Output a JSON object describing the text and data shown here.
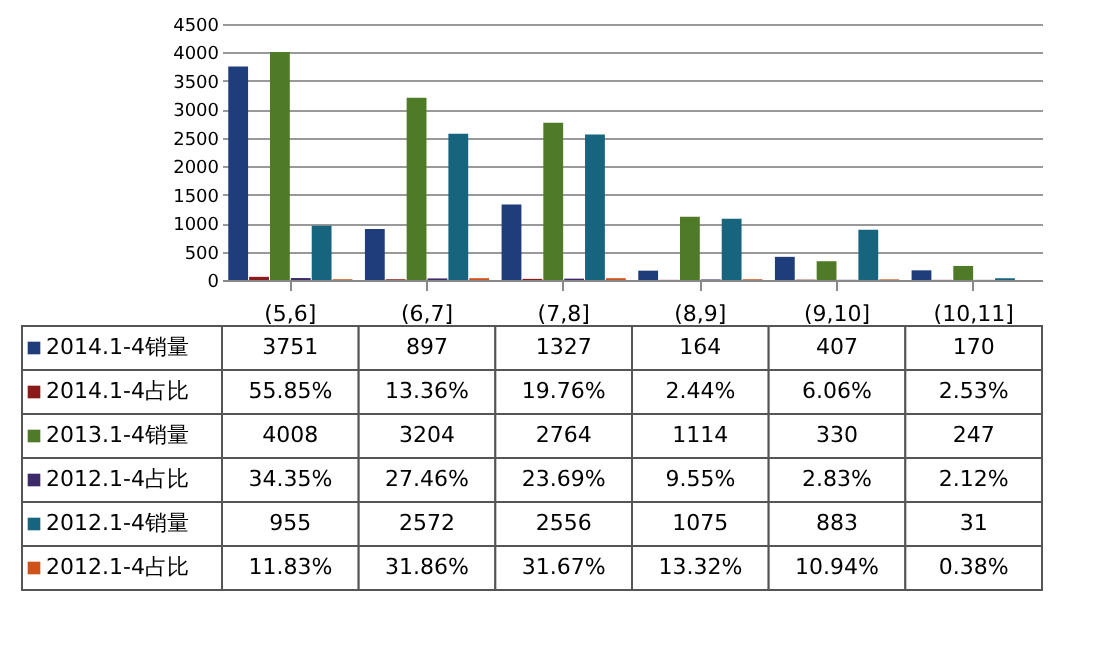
{
  "chart_data": {
    "type": "bar",
    "categories": [
      "(5,6]",
      "(6,7]",
      "(7,8]",
      "(8,9]",
      "(9,10]",
      "(10,11]"
    ],
    "series": [
      {
        "name": "2014.1-4销量",
        "color": "#1f3d7a",
        "values": [
          3751,
          897,
          1327,
          164,
          407,
          170
        ],
        "value_labels": [
          "3751",
          "897",
          "1327",
          "164",
          "407",
          "170"
        ]
      },
      {
        "name": "2014.1-4占比",
        "color": "#8b1a1a",
        "values": [
          55.85,
          13.36,
          19.76,
          2.44,
          6.06,
          2.53
        ],
        "value_labels": [
          "55.85%",
          "13.36%",
          "19.76%",
          "2.44%",
          "6.06%",
          "2.53%"
        ]
      },
      {
        "name": "2013.1-4销量",
        "color": "#4f7a28",
        "values": [
          4008,
          3204,
          2764,
          1114,
          330,
          247
        ],
        "value_labels": [
          "4008",
          "3204",
          "2764",
          "1114",
          "330",
          "247"
        ]
      },
      {
        "name": "2012.1-4占比",
        "color": "#3d2a6b",
        "values": [
          34.35,
          27.46,
          23.69,
          9.55,
          2.83,
          2.12
        ],
        "value_labels": [
          "34.35%",
          "27.46%",
          "23.69%",
          "9.55%",
          "2.83%",
          "2.12%"
        ]
      },
      {
        "name": "2012.1-4销量",
        "color": "#17647f",
        "values": [
          955,
          2572,
          2556,
          1075,
          883,
          31
        ],
        "value_labels": [
          "955",
          "2572",
          "2556",
          "1075",
          "883",
          "31"
        ]
      },
      {
        "name": "2012.1-4占比",
        "color": "#d0521b",
        "values": [
          11.83,
          31.86,
          31.67,
          13.32,
          10.94,
          0.38
        ],
        "value_labels": [
          "11.83%",
          "31.86%",
          "31.67%",
          "13.32%",
          "10.94%",
          "0.38%"
        ]
      }
    ],
    "ylim": [
      0,
      4500
    ],
    "yticks": [
      0,
      500,
      1000,
      1500,
      2000,
      2500,
      3000,
      3500,
      4000,
      4500
    ],
    "grid": "y",
    "legend": "bottom"
  }
}
